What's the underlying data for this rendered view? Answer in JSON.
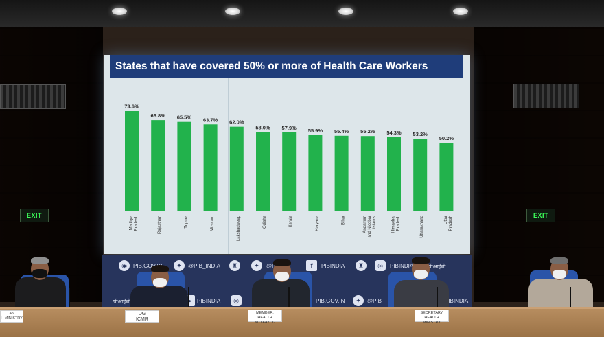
{
  "screen": {
    "title": "States that have covered 50% or more of Health Care Workers"
  },
  "chart_data": {
    "type": "bar",
    "title": "States that have covered 50% or more of Health Care Workers",
    "categories": [
      [
        "Madhya",
        "Pradesh"
      ],
      [
        "Rajasthan"
      ],
      [
        "Tripura"
      ],
      [
        "Mizoram"
      ],
      [
        "Lakshadweep"
      ],
      [
        "Odisha"
      ],
      [
        "Kerala"
      ],
      [
        "Haryana"
      ],
      [
        "Bihar"
      ],
      [
        "Andaman",
        "and Nicobar",
        "Islands"
      ],
      [
        "Himachal",
        "Pradesh"
      ],
      [
        "Uttarakhand"
      ],
      [
        "Uttar",
        "Pradesh"
      ]
    ],
    "values": [
      73.6,
      66.8,
      65.5,
      63.7,
      62.0,
      58.0,
      57.9,
      55.9,
      55.4,
      55.2,
      54.3,
      53.2,
      50.2
    ],
    "value_labels": [
      "73.6%",
      "66.8%",
      "65.5%",
      "63.7%",
      "62.0%",
      "58.0%",
      "57.9%",
      "55.9%",
      "55.4%",
      "55.2%",
      "54.3%",
      "53.2%",
      "50.2%"
    ],
    "bar_color": "#22b24c",
    "ylim": [
      0,
      80
    ],
    "grid": true,
    "legend": "none"
  },
  "backdrop": {
    "row1": [
      "PIB.GOV.IN",
      "@PIB_INDIA",
      "@PIB",
      "PIBINDIA",
      "PIBINDIA",
      "पीआईबी"
    ],
    "row2": [
      "पीआईबी",
      "PIBINDIA",
      "PIB.GOV.IN",
      "@PIB",
      "PIBINDIA"
    ]
  },
  "exit_signs": [
    "EXIT",
    "EXIT"
  ],
  "nameplates": [
    [
      "AS",
      "H MINISTRY"
    ],
    [
      "DG",
      "ICMR"
    ],
    [
      "MEMBER, HEALTH",
      "NITI AAYOG"
    ],
    [
      "SECRETARY",
      "HEALTH MINISTRY"
    ]
  ],
  "colors": {
    "screen_title_bg": "#1f3d7a",
    "bar": "#22b24c",
    "backdrop": "#27345c",
    "chair": "#2a54a8"
  }
}
